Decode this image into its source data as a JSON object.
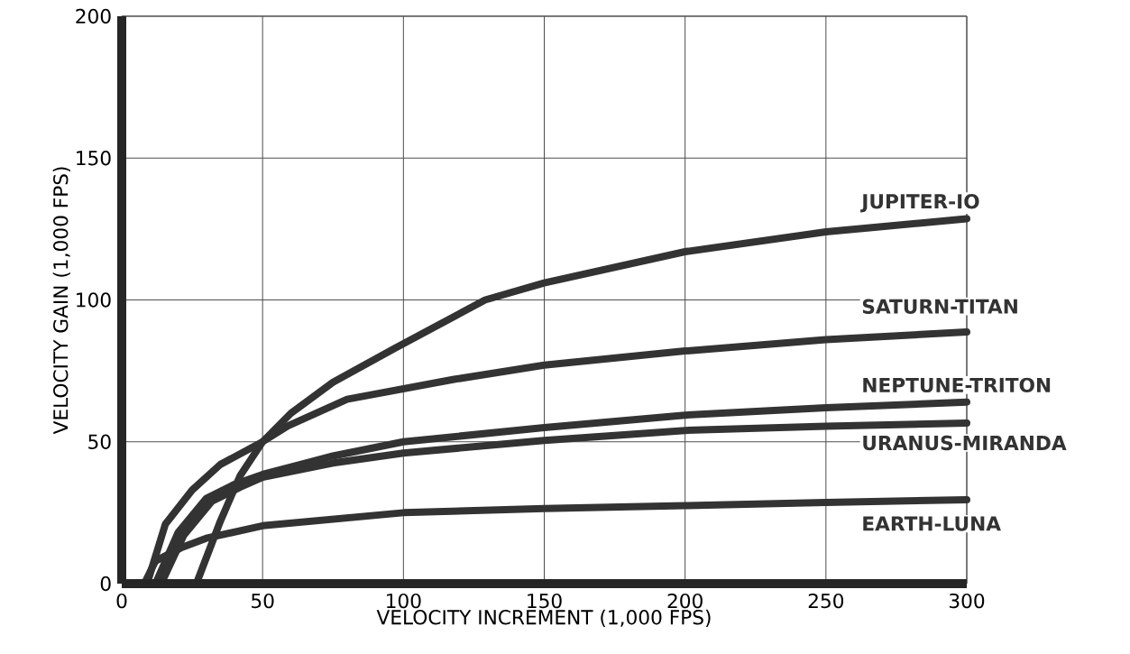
{
  "chart_data": {
    "type": "line",
    "xlabel": "VELOCITY INCREMENT (1,000 FPS)",
    "ylabel": "VELOCITY GAIN (1,000 FPS)",
    "xlim": [
      0,
      300
    ],
    "ylim": [
      0,
      200
    ],
    "xticks": [
      0,
      50,
      100,
      150,
      200,
      250,
      300
    ],
    "yticks": [
      0,
      50,
      100,
      150,
      200
    ],
    "grid": true,
    "legend": false,
    "marker": "none",
    "line_style": "solid",
    "series": [
      {
        "name": "JUPITER-IO",
        "color": "#333333",
        "x": [
          26.5,
          35,
          42,
          50,
          60,
          75,
          97,
          129,
          150,
          200,
          250,
          300
        ],
        "values": [
          0,
          22,
          38,
          50,
          60,
          71,
          83,
          100,
          106,
          117,
          124,
          128.6
        ]
      },
      {
        "name": "SATURN-TITAN",
        "color": "#333333",
        "x": [
          9,
          15.5,
          25,
          35,
          50,
          59,
          80,
          118,
          150,
          200,
          250,
          300
        ],
        "values": [
          0,
          21,
          33,
          42,
          50,
          55.6,
          65,
          72,
          77,
          82,
          86,
          88.7
        ]
      },
      {
        "name": "NEPTUNE-TRITON",
        "color": "#333333",
        "x": [
          12,
          20,
          30,
          40,
          50,
          75,
          100,
          150,
          200,
          250,
          300
        ],
        "values": [
          0,
          18,
          30,
          35,
          38.5,
          45,
          50,
          55,
          59.4,
          62,
          64
        ]
      },
      {
        "name": "URANUS-MIRANDA",
        "color": "#333333",
        "x": [
          14,
          22,
          32,
          42,
          50,
          75,
          100,
          150,
          200,
          250,
          300
        ],
        "values": [
          0,
          17,
          29,
          34,
          37.5,
          42.5,
          46,
          50.5,
          54,
          55.5,
          56.6
        ]
      },
      {
        "name": "EARTH-LUNA",
        "color": "#333333",
        "x": [
          8,
          12,
          21,
          30,
          50,
          100,
          150,
          200,
          250,
          300
        ],
        "values": [
          0,
          8,
          12.6,
          16,
          20.4,
          25,
          26.5,
          27.5,
          28.6,
          29.6
        ]
      }
    ]
  }
}
